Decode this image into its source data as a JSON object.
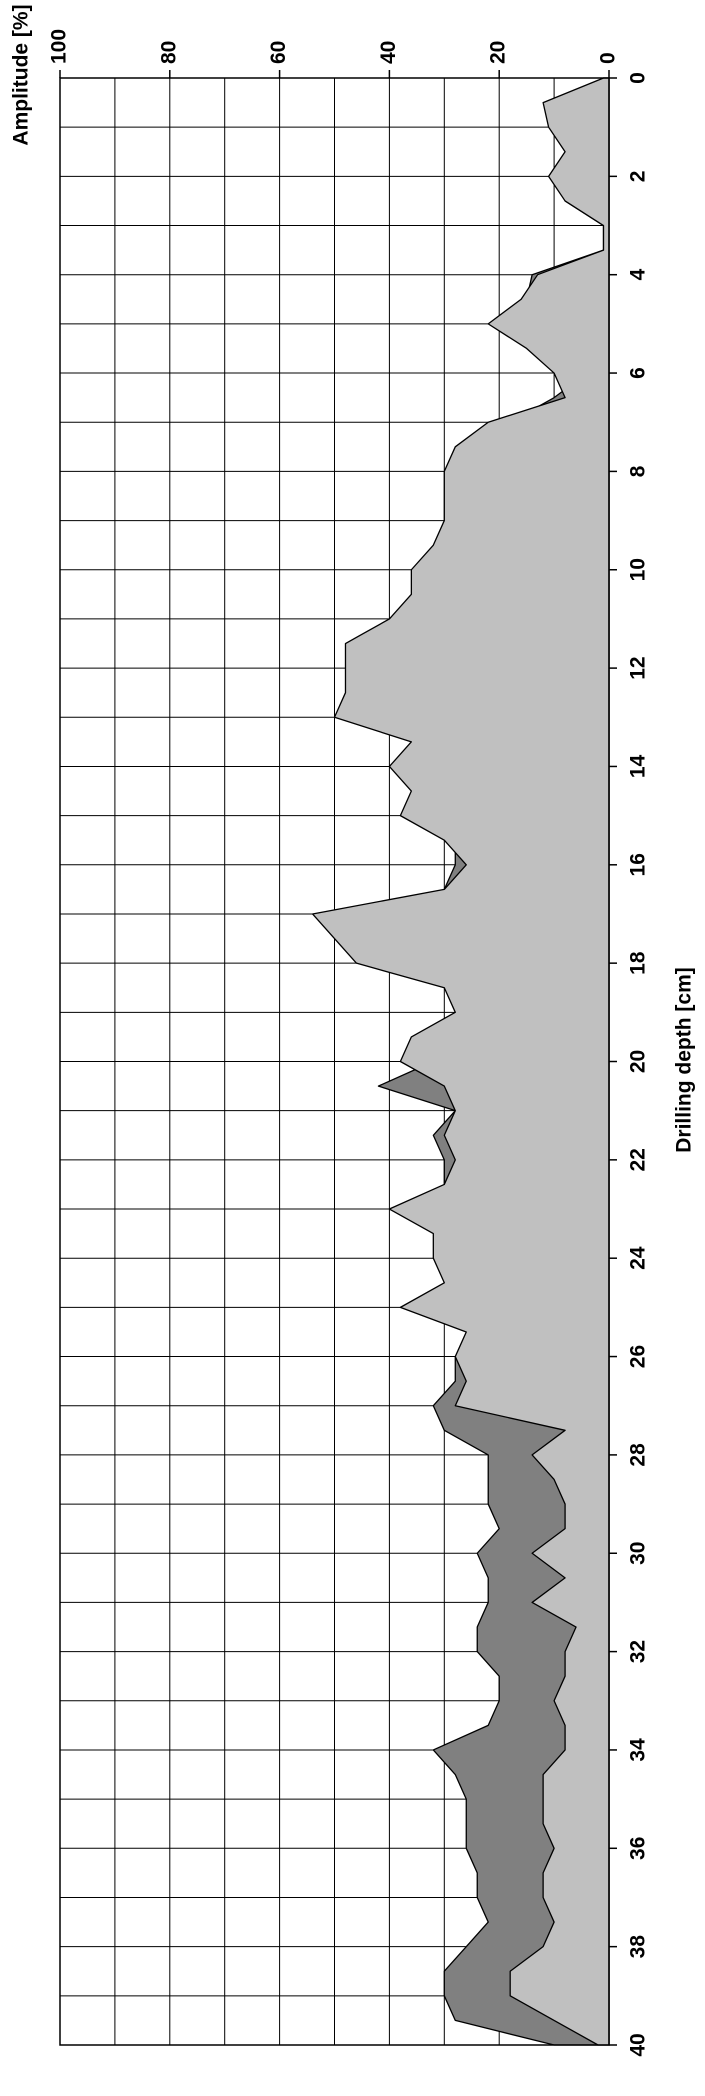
{
  "chart_data": {
    "type": "area",
    "xlabel": "Drilling depth [cm]",
    "ylabel": "Amplitude [%]",
    "x": [
      0,
      0.5,
      1,
      1.5,
      2,
      2.5,
      3,
      3.5,
      4,
      4.5,
      5,
      5.5,
      6,
      6.5,
      7,
      7.5,
      8,
      8.5,
      9,
      9.5,
      10,
      10.5,
      11,
      11.5,
      12,
      12.5,
      13,
      13.5,
      14,
      14.5,
      15,
      15.5,
      16,
      16.5,
      17,
      17.5,
      18,
      18.5,
      19,
      19.5,
      20,
      20.5,
      21,
      21.5,
      22,
      22.5,
      23,
      23.5,
      24,
      24.5,
      25,
      25.5,
      26,
      26.5,
      27,
      27.5,
      28,
      28.5,
      29,
      29.5,
      30,
      30.5,
      31,
      31.5,
      32,
      32.5,
      33,
      33.5,
      34,
      34.5,
      35,
      35.5,
      36,
      36.5,
      37,
      37.5,
      38,
      38.5,
      39,
      39.5,
      40
    ],
    "series": [
      {
        "color": "#808080",
        "values": [
          1,
          9,
          8,
          7,
          9,
          8,
          1,
          1,
          14,
          15,
          15,
          13,
          4,
          10,
          18,
          20,
          22,
          24,
          22,
          24,
          22,
          26,
          24,
          26,
          28,
          30,
          30,
          30,
          28,
          30,
          28,
          28,
          28,
          30,
          30,
          46,
          40,
          26,
          28,
          26,
          32,
          42,
          28,
          32,
          30,
          30,
          30,
          30,
          32,
          28,
          30,
          24,
          28,
          28,
          32,
          30,
          22,
          22,
          22,
          20,
          24,
          22,
          22,
          24,
          24,
          20,
          20,
          22,
          32,
          28,
          26,
          26,
          26,
          24,
          24,
          22,
          26,
          30,
          30,
          28,
          10
        ]
      },
      {
        "color": "#c0c0c0",
        "values": [
          1,
          12,
          11,
          8,
          11,
          8,
          1,
          1,
          13,
          16,
          22,
          15,
          10,
          8,
          22,
          28,
          30,
          30,
          30,
          32,
          36,
          36,
          40,
          48,
          48,
          48,
          50,
          36,
          40,
          36,
          38,
          30,
          26,
          30,
          54,
          50,
          46,
          30,
          28,
          36,
          38,
          30,
          28,
          30,
          28,
          30,
          40,
          32,
          32,
          30,
          38,
          26,
          28,
          26,
          28,
          8,
          14,
          10,
          8,
          8,
          14,
          8,
          14,
          6,
          8,
          8,
          10,
          8,
          8,
          12,
          12,
          12,
          10,
          12,
          12,
          10,
          12,
          18,
          18,
          10,
          2
        ]
      }
    ],
    "xlim": [
      0,
      40
    ],
    "xticks": [
      0,
      2,
      4,
      6,
      8,
      10,
      12,
      14,
      16,
      18,
      20,
      22,
      24,
      26,
      28,
      30,
      32,
      34,
      36,
      38,
      40
    ],
    "x_minor_ticks": [
      1,
      3,
      5,
      7,
      9,
      11,
      13,
      15,
      17,
      19,
      21,
      23,
      25,
      27,
      29,
      31,
      33,
      35,
      37,
      39
    ],
    "ylim": [
      0,
      100
    ],
    "yticks": [
      0,
      20,
      40,
      60,
      80,
      100
    ],
    "y_minor_ticks": [
      10,
      30,
      50,
      70,
      90
    ],
    "grid": true
  }
}
